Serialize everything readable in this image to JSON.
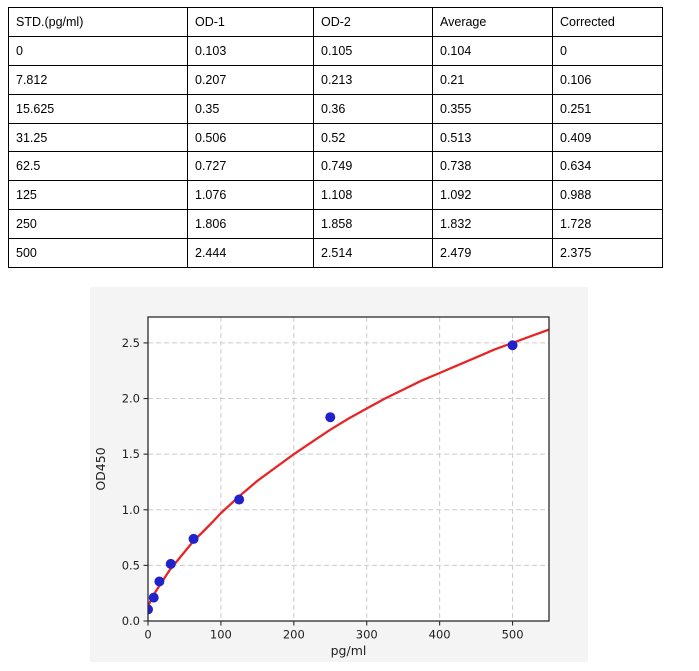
{
  "table": {
    "headers": [
      "STD.(pg/ml)",
      "OD-1",
      "OD-2",
      "Average",
      "Corrected"
    ],
    "rows": [
      [
        "0",
        "0.103",
        "0.105",
        "0.104",
        "0"
      ],
      [
        "7.812",
        "0.207",
        "0.213",
        "0.21",
        "0.106"
      ],
      [
        "15.625",
        "0.35",
        "0.36",
        "0.355",
        "0.251"
      ],
      [
        "31.25",
        "0.506",
        "0.52",
        "0.513",
        "0.409"
      ],
      [
        "62.5",
        "0.727",
        "0.749",
        "0.738",
        "0.634"
      ],
      [
        "125",
        "1.076",
        "1.108",
        "1.092",
        "0.988"
      ],
      [
        "250",
        "1.806",
        "1.858",
        "1.832",
        "1.728"
      ],
      [
        "500",
        "2.444",
        "2.514",
        "2.479",
        "2.375"
      ]
    ]
  },
  "chart_data": {
    "type": "scatter",
    "title": "",
    "xlabel": "pg/ml",
    "ylabel": "OD450",
    "xlim": [
      0,
      550
    ],
    "ylim": [
      0,
      2.733
    ],
    "x_ticks": [
      0,
      100,
      200,
      300,
      400,
      500
    ],
    "y_ticks": [
      "0.0",
      "0.5",
      "1.0",
      "1.5",
      "2.0",
      "2.5"
    ],
    "grid": true,
    "grid_style": "dashed",
    "legend": "none",
    "series": [
      {
        "name": "standard-points",
        "type": "scatter",
        "color": "#2222cd",
        "x": [
          0,
          7.812,
          15.625,
          31.25,
          62.5,
          125,
          250,
          500
        ],
        "y": [
          0.104,
          0.21,
          0.355,
          0.513,
          0.738,
          1.092,
          1.832,
          2.479
        ]
      },
      {
        "name": "fit-curve",
        "type": "line",
        "color": "#e62626",
        "x": [
          0,
          5,
          10,
          15,
          20,
          25,
          30,
          40,
          50,
          62.5,
          75,
          90,
          100,
          115,
          125,
          150,
          175,
          200,
          225,
          250,
          275,
          300,
          325,
          350,
          375,
          400,
          425,
          450,
          475,
          500,
          525,
          550
        ],
        "y": [
          0.13,
          0.2,
          0.26,
          0.31,
          0.36,
          0.41,
          0.46,
          0.54,
          0.62,
          0.72,
          0.8,
          0.9,
          0.97,
          1.06,
          1.12,
          1.26,
          1.38,
          1.5,
          1.61,
          1.72,
          1.82,
          1.91,
          2.0,
          2.08,
          2.16,
          2.23,
          2.3,
          2.37,
          2.44,
          2.5,
          2.56,
          2.62
        ]
      }
    ],
    "colors": {
      "figure_bg": "#f4f4f4",
      "plot_bg": "#ffffff",
      "grid": "#cccccc",
      "spine": "#2b2b2b",
      "tick_label": "#1f1f1f"
    }
  }
}
